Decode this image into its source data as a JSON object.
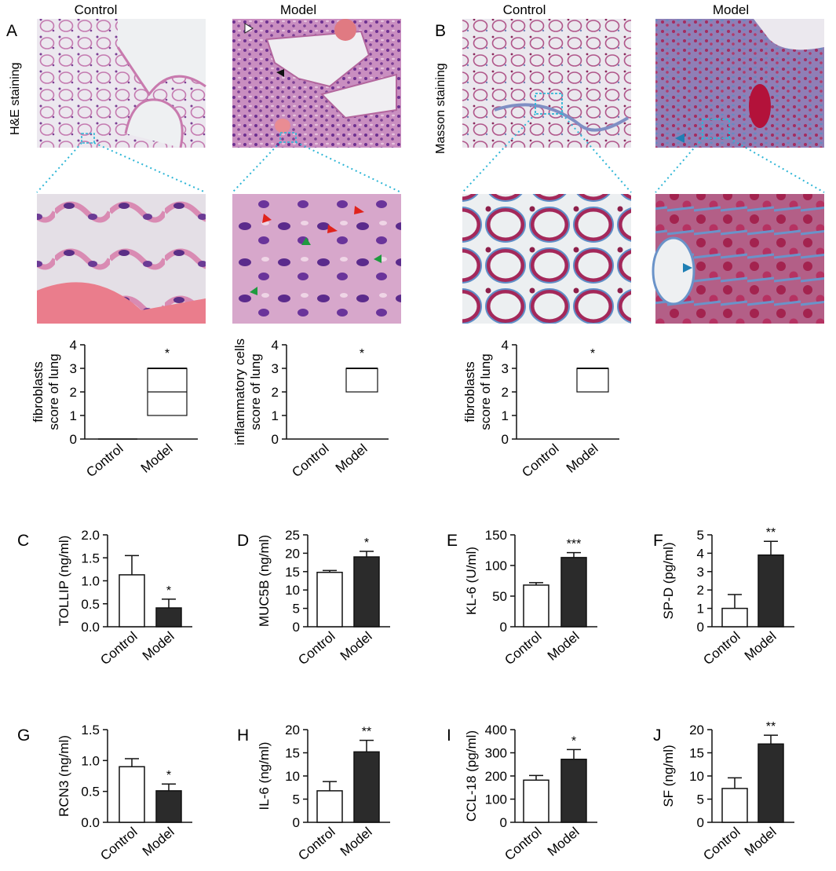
{
  "figure": {
    "micro": {
      "col_titles": [
        "Control",
        "Model",
        "Control",
        "Model"
      ],
      "panel_letters": [
        "A",
        "B"
      ],
      "row_labels": [
        "H&E staining",
        "Masson staining"
      ]
    }
  },
  "chart_data": [
    {
      "id": "A1",
      "type": "box",
      "ylabel": [
        "fibroblasts",
        "score of lung"
      ],
      "categories": [
        "Control",
        "Model"
      ],
      "ylim": [
        0,
        4
      ],
      "yticks": [
        0,
        1,
        2,
        3,
        4
      ],
      "boxes": [
        {
          "q1": 0,
          "median": 0,
          "q3": 0
        },
        {
          "q1": 1,
          "median": 2,
          "q3": 3
        }
      ],
      "significance": "*"
    },
    {
      "id": "A2",
      "type": "box",
      "ylabel": [
        "inflammatory cells",
        "score of lung"
      ],
      "categories": [
        "Control",
        "Model"
      ],
      "ylim": [
        0,
        4
      ],
      "yticks": [
        0,
        1,
        2,
        3,
        4
      ],
      "boxes": [
        null,
        {
          "q1": 2,
          "median": 3,
          "q3": 3
        }
      ],
      "significance": "*"
    },
    {
      "id": "B1",
      "type": "box",
      "ylabel": [
        "fibroblasts",
        "score of lung"
      ],
      "categories": [
        "Control",
        "Model"
      ],
      "ylim": [
        0,
        4
      ],
      "yticks": [
        0,
        1,
        2,
        3,
        4
      ],
      "boxes": [
        null,
        {
          "q1": 2,
          "median": 3,
          "q3": 3
        }
      ],
      "significance": "*"
    },
    {
      "id": "C",
      "letter": "C",
      "type": "bar",
      "ylabel": "TOLLIP (ng/ml)",
      "categories": [
        "Control",
        "Model"
      ],
      "values": [
        1.13,
        0.41
      ],
      "errors": [
        0.42,
        0.19
      ],
      "ylim": [
        0,
        2.0
      ],
      "ytick_labels": [
        "0.0",
        "0.5",
        "1.0",
        "1.5",
        "2.0"
      ],
      "significance": "*",
      "colors": [
        "#ffffff",
        "#2b2b2b"
      ]
    },
    {
      "id": "D",
      "letter": "D",
      "type": "bar",
      "ylabel": "MUC5B (ng/ml)",
      "categories": [
        "Control",
        "Model"
      ],
      "values": [
        14.8,
        19.0
      ],
      "errors": [
        0.5,
        1.5
      ],
      "ylim": [
        0,
        25
      ],
      "ytick_labels": [
        "0",
        "5",
        "10",
        "15",
        "20",
        "25"
      ],
      "significance": "*",
      "colors": [
        "#ffffff",
        "#2b2b2b"
      ]
    },
    {
      "id": "E",
      "letter": "E",
      "type": "bar",
      "ylabel": "KL-6 (U/ml)",
      "categories": [
        "Control",
        "Model"
      ],
      "values": [
        68,
        113
      ],
      "errors": [
        4,
        8
      ],
      "ylim": [
        0,
        150
      ],
      "ytick_labels": [
        "0",
        "50",
        "100",
        "150"
      ],
      "significance": "***",
      "colors": [
        "#ffffff",
        "#2b2b2b"
      ]
    },
    {
      "id": "F",
      "letter": "F",
      "type": "bar",
      "ylabel": "SP-D (pg/ml)",
      "categories": [
        "Control",
        "Model"
      ],
      "values": [
        1.0,
        3.9
      ],
      "errors": [
        0.75,
        0.75
      ],
      "ylim": [
        0,
        5
      ],
      "ytick_labels": [
        "0",
        "1",
        "2",
        "3",
        "4",
        "5"
      ],
      "significance": "**",
      "colors": [
        "#ffffff",
        "#2b2b2b"
      ]
    },
    {
      "id": "G",
      "letter": "G",
      "type": "bar",
      "ylabel": "RCN3 (ng/ml)",
      "categories": [
        "Control",
        "Model"
      ],
      "values": [
        0.9,
        0.51
      ],
      "errors": [
        0.13,
        0.11
      ],
      "ylim": [
        0,
        1.5
      ],
      "ytick_labels": [
        "0.0",
        "0.5",
        "1.0",
        "1.5"
      ],
      "significance": "*",
      "colors": [
        "#ffffff",
        "#2b2b2b"
      ]
    },
    {
      "id": "H",
      "letter": "H",
      "type": "bar",
      "ylabel": "IL-6 (ng/ml)",
      "categories": [
        "Control",
        "Model"
      ],
      "values": [
        6.8,
        15.2
      ],
      "errors": [
        2.0,
        2.5
      ],
      "ylim": [
        0,
        20
      ],
      "ytick_labels": [
        "0",
        "5",
        "10",
        "15",
        "20"
      ],
      "significance": "**",
      "colors": [
        "#ffffff",
        "#2b2b2b"
      ]
    },
    {
      "id": "I",
      "letter": "I",
      "type": "bar",
      "ylabel": "CCL-18 (pg/ml)",
      "categories": [
        "Control",
        "Model"
      ],
      "values": [
        182,
        272
      ],
      "errors": [
        20,
        42
      ],
      "ylim": [
        0,
        400
      ],
      "ytick_labels": [
        "0",
        "100",
        "200",
        "300",
        "400"
      ],
      "significance": "*",
      "colors": [
        "#ffffff",
        "#2b2b2b"
      ]
    },
    {
      "id": "J",
      "letter": "J",
      "type": "bar",
      "ylabel": "SF (ng/ml)",
      "categories": [
        "Control",
        "Model"
      ],
      "values": [
        7.3,
        16.9
      ],
      "errors": [
        2.3,
        1.9
      ],
      "ylim": [
        0,
        20
      ],
      "ytick_labels": [
        "0",
        "5",
        "10",
        "15",
        "20"
      ],
      "significance": "**",
      "colors": [
        "#ffffff",
        "#2b2b2b"
      ]
    }
  ]
}
